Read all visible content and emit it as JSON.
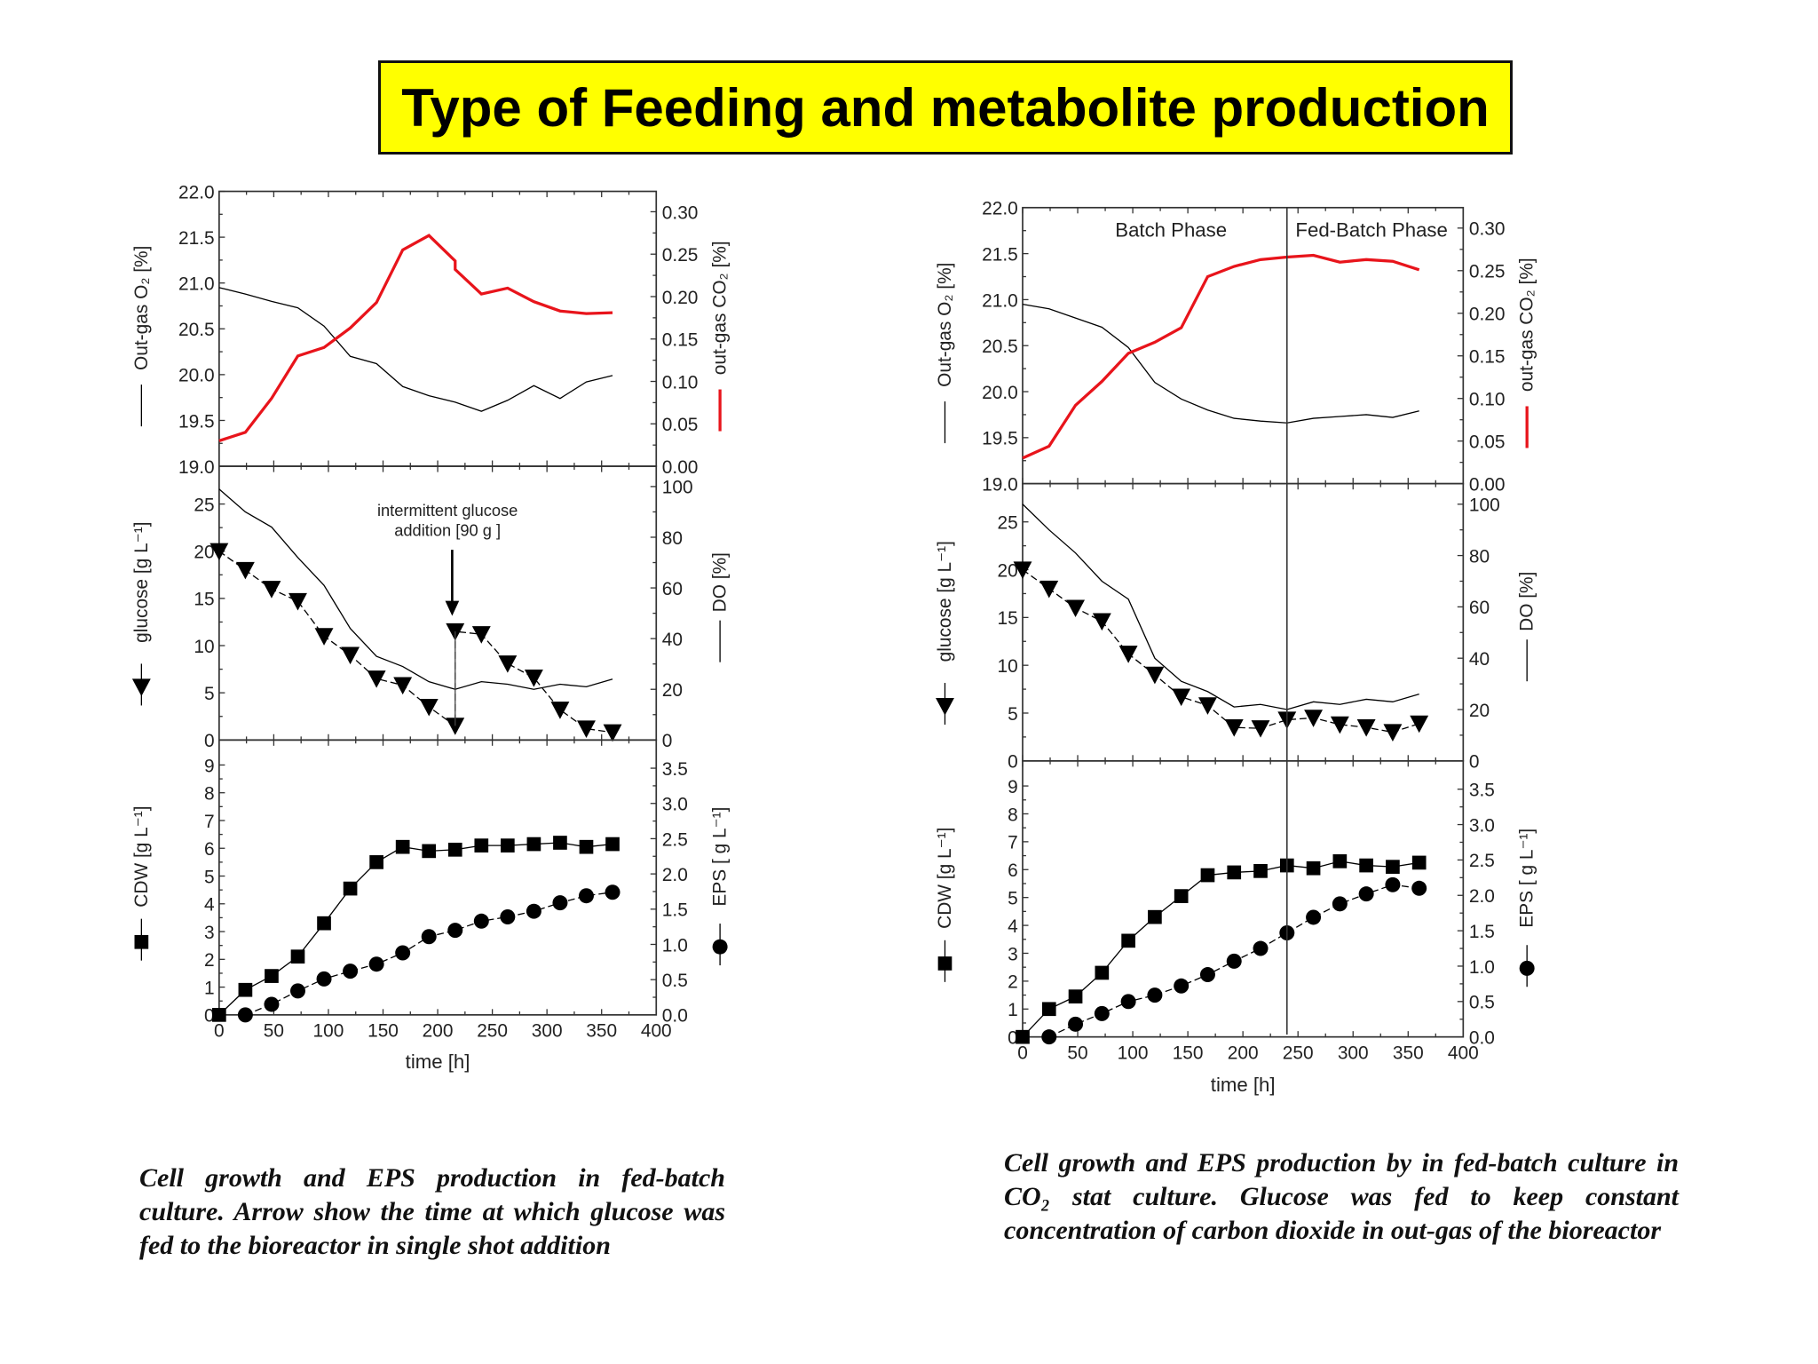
{
  "title": "Type of Feeding and metabolite production",
  "captions": {
    "left": "Cell growth and EPS production in fed-batch culture. Arrow show the time at which glucose was fed to the bioreactor in single shot addition",
    "right": "Cell growth and EPS production by in fed-batch culture in CO₂ stat culture. Glucose was fed to keep constant concentration of carbon dioxide in out-gas of the bioreactor"
  },
  "colors": {
    "co2": "#e8141b",
    "black": "#000000",
    "title_bg": "#ffff00"
  },
  "chart_data": [
    {
      "type": "line",
      "xlabel": "time [h]",
      "xlim": [
        0,
        400
      ],
      "x_ticks": [
        "0",
        "50",
        "100",
        "150",
        "200",
        "250",
        "300",
        "350",
        "400"
      ],
      "annotations": [
        "intermittent glucose",
        "addition [90 g ]"
      ],
      "x": [
        0,
        24,
        48,
        72,
        96,
        120,
        144,
        168,
        192,
        216,
        240,
        264,
        288,
        312,
        336,
        360
      ],
      "panels": [
        {
          "left_axis": {
            "label": "Out-gas O₂ [%]",
            "ylim": [
              19,
              22
            ],
            "ticks": [
              "19.0",
              "19.5",
              "20.0",
              "20.5",
              "21.0",
              "21.5",
              "22.0"
            ]
          },
          "right_axis": {
            "label": "out-gas CO₂ [%]",
            "ylim": [
              0,
              0.324
            ],
            "ticks": [
              "0.00",
              "0.05",
              "0.10",
              "0.15",
              "0.20",
              "0.25",
              "0.30"
            ]
          },
          "series": [
            {
              "axis": "left",
              "marker": "none",
              "color": "#000000",
              "y": [
                20.95,
                20.88,
                20.8,
                20.73,
                20.53,
                20.2,
                20.12,
                19.87,
                19.77,
                19.7,
                19.6,
                19.72,
                19.88,
                19.74,
                19.92,
                19.99
              ]
            },
            {
              "axis": "right",
              "marker": "none",
              "color": "#e8141b",
              "x": [
                0,
                24,
                48,
                72,
                96,
                120,
                144,
                168,
                192,
                216,
                216,
                240,
                264,
                288,
                312,
                336,
                360
              ],
              "y": [
                0.03,
                0.04,
                0.08,
                0.13,
                0.14,
                0.163,
                0.193,
                0.255,
                0.272,
                0.242,
                0.232,
                0.203,
                0.21,
                0.194,
                0.183,
                0.18,
                0.181
              ]
            }
          ]
        },
        {
          "left_axis": {
            "label": "glucose [g L⁻¹]",
            "ylim": [
              0,
              29
            ],
            "ticks": [
              "0",
              "5",
              "10",
              "15",
              "20",
              "25"
            ]
          },
          "right_axis": {
            "label": "DO [%]",
            "ylim": [
              0,
              108
            ],
            "ticks": [
              "0",
              "20",
              "40",
              "60",
              "80",
              "100"
            ]
          },
          "series": [
            {
              "axis": "left",
              "marker": "triangle-down",
              "color": "#000000",
              "x": [
                0,
                24,
                48,
                72,
                96,
                120,
                144,
                168,
                192,
                216,
                216,
                240,
                264,
                288,
                312,
                336,
                360
              ],
              "y": [
                20,
                18,
                16,
                14.7,
                11,
                9,
                6.5,
                5.8,
                3.5,
                1.5,
                11.5,
                11.2,
                8.1,
                6.6,
                3.2,
                1.2,
                0.8
              ]
            },
            {
              "axis": "right",
              "marker": "none",
              "color": "#000000",
              "y": [
                99,
                90,
                84,
                72,
                61,
                44,
                33,
                29,
                23,
                20,
                23,
                22,
                20,
                22,
                21,
                24
              ]
            }
          ]
        },
        {
          "left_axis": {
            "label": "CDW [g L⁻¹]",
            "ylim": [
              0,
              9.9
            ],
            "ticks": [
              "0",
              "1",
              "2",
              "3",
              "4",
              "5",
              "6",
              "7",
              "8",
              "9"
            ]
          },
          "right_axis": {
            "label": "EPS [ g L⁻¹]",
            "ylim": [
              0,
              3.9
            ],
            "ticks": [
              "0.0",
              "0.5",
              "1.0",
              "1.5",
              "2.0",
              "2.5",
              "3.0",
              "3.5"
            ]
          },
          "series": [
            {
              "axis": "left",
              "marker": "square",
              "color": "#000000",
              "y": [
                0,
                0.9,
                1.4,
                2.1,
                3.3,
                4.55,
                5.5,
                6.05,
                5.9,
                5.95,
                6.1,
                6.1,
                6.15,
                6.2,
                6.05,
                6.15
              ]
            },
            {
              "axis": "right",
              "marker": "circle",
              "color": "#000000",
              "x": [
                24,
                48,
                72,
                96,
                120,
                144,
                168,
                192,
                216,
                240,
                264,
                288,
                312,
                336,
                360
              ],
              "y": [
                0,
                0.15,
                0.34,
                0.51,
                0.62,
                0.72,
                0.88,
                1.11,
                1.2,
                1.33,
                1.39,
                1.47,
                1.59,
                1.69,
                1.74
              ]
            }
          ]
        }
      ]
    },
    {
      "type": "line",
      "xlabel": "time [h]",
      "xlim": [
        0,
        400
      ],
      "x_ticks": [
        "0",
        "50",
        "100",
        "150",
        "200",
        "250",
        "300",
        "350",
        "400"
      ],
      "annotations": [
        "Batch Phase",
        "Fed-Batch Phase"
      ],
      "phase_boundary_time": 240,
      "x": [
        0,
        24,
        48,
        72,
        96,
        120,
        144,
        168,
        192,
        216,
        240,
        264,
        288,
        312,
        336,
        360
      ],
      "panels": [
        {
          "left_axis": {
            "label": "Out-gas O₂ [%]",
            "ylim": [
              19,
              22
            ],
            "ticks": [
              "19.0",
              "19.5",
              "20.0",
              "20.5",
              "21.0",
              "21.5",
              "22.0"
            ]
          },
          "right_axis": {
            "label": "out-gas CO₂ [%]",
            "ylim": [
              0,
              0.324
            ],
            "ticks": [
              "0.00",
              "0.05",
              "0.10",
              "0.15",
              "0.20",
              "0.25",
              "0.30"
            ]
          },
          "series": [
            {
              "axis": "left",
              "marker": "none",
              "color": "#000000",
              "y": [
                20.95,
                20.9,
                20.8,
                20.7,
                20.48,
                20.1,
                19.92,
                19.8,
                19.71,
                19.68,
                19.66,
                19.71,
                19.73,
                19.75,
                19.72,
                19.79
              ]
            },
            {
              "axis": "right",
              "marker": "none",
              "color": "#e8141b",
              "y": [
                0.03,
                0.044,
                0.092,
                0.12,
                0.153,
                0.166,
                0.183,
                0.243,
                0.255,
                0.263,
                0.266,
                0.268,
                0.26,
                0.263,
                0.261,
                0.251
              ]
            }
          ]
        },
        {
          "left_axis": {
            "label": "glucose [g L⁻¹]",
            "ylim": [
              0,
              29
            ],
            "ticks": [
              "0",
              "5",
              "10",
              "15",
              "20",
              "25"
            ]
          },
          "right_axis": {
            "label": "DO [%]",
            "ylim": [
              0,
              108
            ],
            "ticks": [
              "0",
              "20",
              "40",
              "60",
              "80",
              "100"
            ]
          },
          "series": [
            {
              "axis": "left",
              "marker": "triangle-down",
              "color": "#000000",
              "y": [
                20,
                18,
                16,
                14.6,
                11.2,
                9,
                6.7,
                5.8,
                3.5,
                3.4,
                4.3,
                4.5,
                3.8,
                3.5,
                3.0,
                3.9
              ]
            },
            {
              "axis": "right",
              "marker": "none",
              "color": "#000000",
              "y": [
                100,
                90,
                81,
                70,
                63,
                40,
                31,
                27,
                21,
                22,
                20,
                23,
                22,
                24,
                23,
                26
              ]
            }
          ]
        },
        {
          "left_axis": {
            "label": "CDW [g L⁻¹]",
            "ylim": [
              0,
              9.9
            ],
            "ticks": [
              "0",
              "1",
              "2",
              "3",
              "4",
              "5",
              "6",
              "7",
              "8",
              "9"
            ]
          },
          "right_axis": {
            "label": "EPS [ g L⁻¹]",
            "ylim": [
              0,
              3.9
            ],
            "ticks": [
              "0.0",
              "0.5",
              "1.0",
              "1.5",
              "2.0",
              "2.5",
              "3.0",
              "3.5"
            ]
          },
          "series": [
            {
              "axis": "left",
              "marker": "square",
              "color": "#000000",
              "y": [
                0,
                1.0,
                1.45,
                2.3,
                3.45,
                4.3,
                5.05,
                5.8,
                5.9,
                5.95,
                6.15,
                6.05,
                6.3,
                6.15,
                6.1,
                6.25
              ]
            },
            {
              "axis": "right",
              "marker": "circle",
              "color": "#000000",
              "x": [
                24,
                48,
                72,
                96,
                120,
                144,
                168,
                192,
                216,
                240,
                264,
                288,
                312,
                336,
                360
              ],
              "y": [
                0,
                0.18,
                0.33,
                0.5,
                0.59,
                0.72,
                0.88,
                1.07,
                1.25,
                1.47,
                1.69,
                1.88,
                2.02,
                2.15,
                2.1
              ]
            }
          ]
        }
      ]
    }
  ]
}
